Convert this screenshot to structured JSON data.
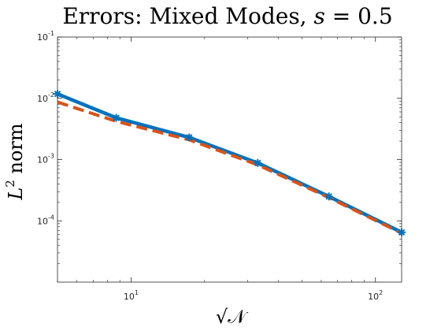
{
  "chart_data": {
    "type": "line",
    "title": "Errors: Mixed Modes, s = 0.5",
    "title_parts": {
      "prefix": "Errors: Mixed Modes, ",
      "var": "s",
      "rest": " = 0.5"
    },
    "xlabel": "√𝒩",
    "ylabel": "L² norm",
    "ylabel_parts": {
      "var": "L",
      "sup": "2",
      "rest": " norm"
    },
    "x_scale": "log",
    "y_scale": "log",
    "xlim": [
      5,
      128
    ],
    "ylim": [
      1e-05,
      0.1
    ],
    "x_ticks": [
      {
        "value": 10,
        "base": "10",
        "exp": "1"
      },
      {
        "value": 100,
        "base": "10",
        "exp": "2"
      }
    ],
    "y_ticks": [
      {
        "value": 0.1,
        "base": "10",
        "exp": "-1"
      },
      {
        "value": 0.01,
        "base": "10",
        "exp": "-2"
      },
      {
        "value": 0.001,
        "base": "10",
        "exp": "-3"
      },
      {
        "value": 0.0001,
        "base": "10",
        "exp": "-4"
      }
    ],
    "grid": false,
    "series": [
      {
        "color": "#0072BD",
        "style": "solid",
        "marker": "star",
        "x": [
          5,
          8.7,
          17.3,
          33,
          64.5,
          128
        ],
        "y": [
          0.0118,
          0.0048,
          0.0023,
          0.00088,
          0.00025,
          6.5e-05
        ]
      },
      {
        "color": "#D95319",
        "style": "dashed",
        "marker": "none",
        "x": [
          5,
          8.7,
          17.3,
          33,
          64.5,
          128
        ],
        "y": [
          0.0087,
          0.0042,
          0.0021,
          0.00082,
          0.00024,
          6.3e-05
        ]
      }
    ]
  }
}
